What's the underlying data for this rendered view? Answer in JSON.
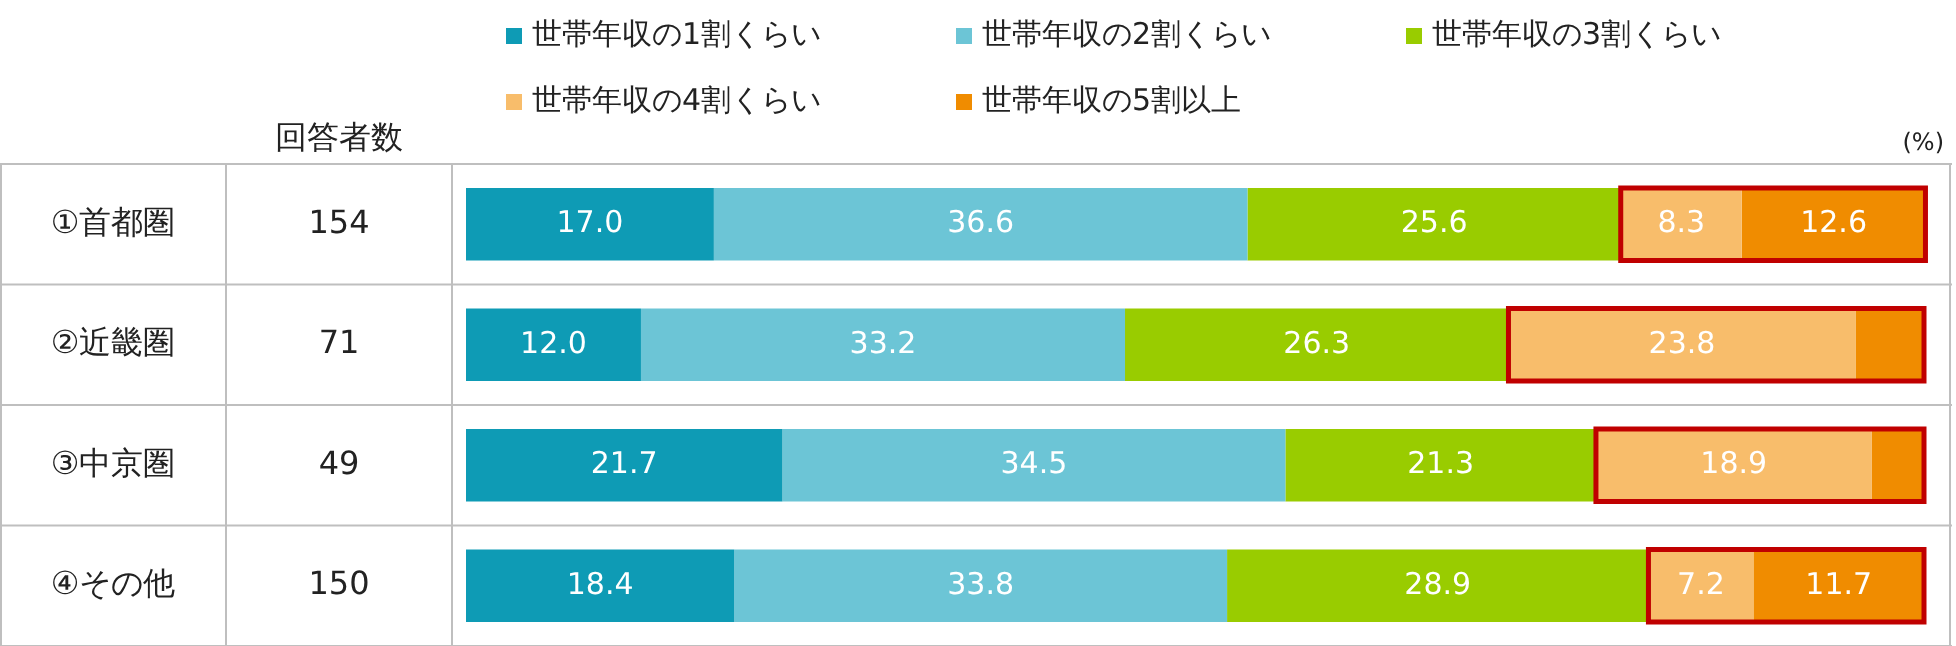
{
  "chart_data": {
    "type": "bar",
    "orientation": "horizontal",
    "stacked": true,
    "xlim": [
      0,
      100
    ],
    "tick_labels": "y",
    "legend": "top",
    "xlabel": "(%)",
    "categories": [
      "①首都圏",
      "②近畿圏",
      "③中京圏",
      "④その他"
    ],
    "series": [
      {
        "name": "世帯年収の1割くらい",
        "color": "#0e9bb5",
        "values": [
          17.0,
          12.0,
          21.7,
          18.4
        ],
        "value_labels": [
          "17.0",
          "12.0",
          "21.7",
          "18.4"
        ]
      },
      {
        "name": "世帯年収の2割くらい",
        "color": "#6cc5d6",
        "values": [
          36.6,
          33.2,
          34.5,
          33.8
        ],
        "value_labels": [
          "36.6",
          "33.2",
          "34.5",
          "33.8"
        ]
      },
      {
        "name": "世帯年収の3割くらい",
        "color": "#99cc00",
        "values": [
          25.6,
          26.3,
          21.3,
          28.9
        ],
        "value_labels": [
          "25.6",
          "26.3",
          "21.3",
          "28.9"
        ]
      },
      {
        "name": "世帯年収の4割くらい",
        "color": "#f8bd6b",
        "values": [
          8.3,
          23.8,
          18.9,
          7.2
        ],
        "value_labels": [
          "8.3",
          "23.8",
          "18.9",
          "7.2"
        ]
      },
      {
        "name": "世帯年収の5割以上",
        "color": "#f08c00",
        "values": [
          12.6,
          4.7,
          3.6,
          11.7
        ],
        "value_labels": [
          "12.6",
          null,
          null,
          "11.7"
        ]
      }
    ],
    "annotations": [
      "回答者数",
      "154",
      "71",
      "49",
      "150"
    ]
  }
}
